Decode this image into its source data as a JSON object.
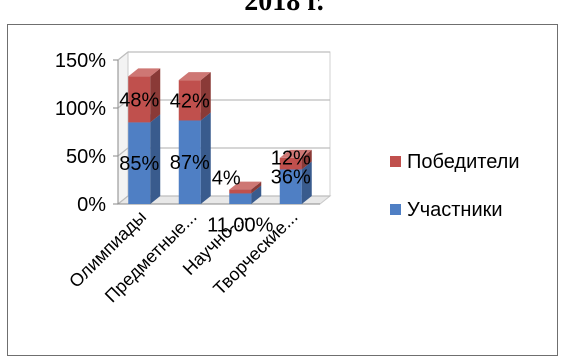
{
  "page": {
    "title": "2018 г."
  },
  "chart_data": {
    "type": "bar",
    "stacked": true,
    "three_d": true,
    "categories": [
      "Олимпиады",
      "Предметные...",
      "Научно-...",
      "Творческие..."
    ],
    "series": [
      {
        "name": "Участники",
        "color": "#4f7fc4",
        "values": [
          85,
          87,
          11,
          36
        ],
        "labels": [
          "85%",
          "87%",
          "11,00%",
          "36%"
        ]
      },
      {
        "name": "Победители",
        "color": "#c0504d",
        "values": [
          48,
          42,
          4,
          12
        ],
        "labels": [
          "48%",
          "42%",
          "4%",
          "12%"
        ]
      }
    ],
    "y_ticks": [
      "0%",
      "50%",
      "100%",
      "150%"
    ],
    "ylim": [
      0,
      150
    ],
    "grid": true,
    "legend_position": "right"
  }
}
